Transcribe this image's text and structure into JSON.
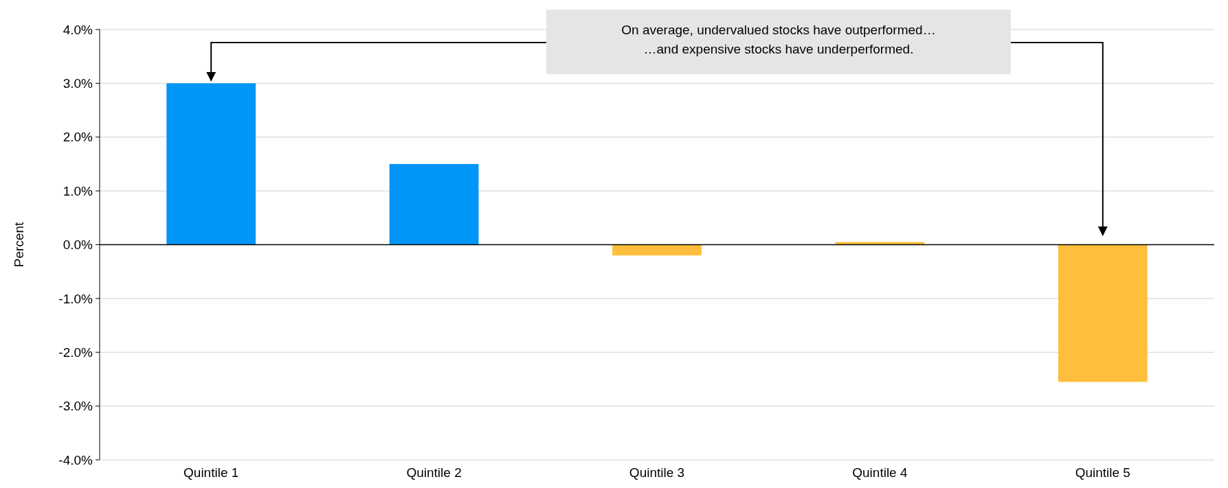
{
  "chart_data": {
    "type": "bar",
    "ylabel": "Percent",
    "categories": [
      "Quintile 1",
      "Quintile 2",
      "Quintile 3",
      "Quintile 4",
      "Quintile 5"
    ],
    "values": [
      3.0,
      1.5,
      -0.2,
      0.05,
      -2.55
    ],
    "colors": [
      "#0095f6",
      "#0095f6",
      "#ffbe3b",
      "#ffbe3b",
      "#ffbe3b"
    ],
    "ylim": [
      -4,
      4
    ],
    "yticks": [
      {
        "value": -4,
        "label": "-4.0%"
      },
      {
        "value": -3,
        "label": "-3.0%"
      },
      {
        "value": -2,
        "label": "-2.0%"
      },
      {
        "value": -1,
        "label": "-1.0%"
      },
      {
        "value": 0,
        "label": "0.0%"
      },
      {
        "value": 1,
        "label": "1.0%"
      },
      {
        "value": 2,
        "label": "2.0%"
      },
      {
        "value": 3,
        "label": "3.0%"
      },
      {
        "value": 4,
        "label": "4.0%"
      }
    ],
    "grid": "y",
    "annotations": [
      "On average, undervalued stocks have outperformed…",
      "…and expensive stocks have underperformed."
    ]
  }
}
